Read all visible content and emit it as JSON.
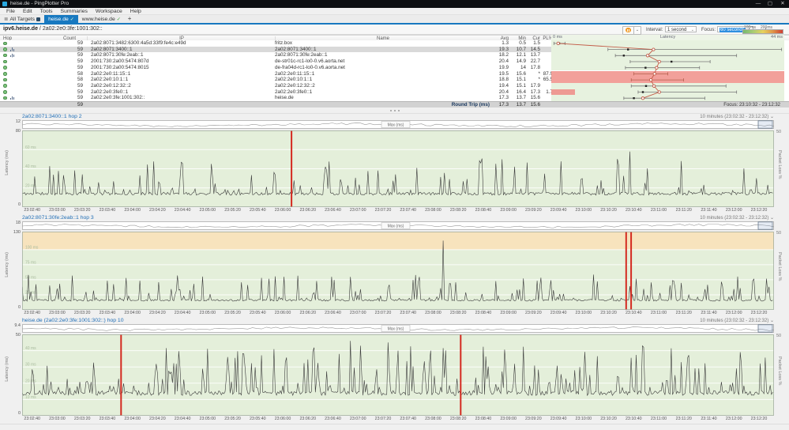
{
  "window": {
    "title": "heise.de - PingPlotter Pro",
    "minimize": "—",
    "maximize": "▢",
    "close": "✕"
  },
  "menu": {
    "items": [
      "File",
      "Edit",
      "Tools",
      "Summaries",
      "Workspace",
      "Help"
    ]
  },
  "icons": {
    "check": "✓",
    "chevron_down": "⌄",
    "summary": "≣",
    "add_tab": "+",
    "pause": "pause-icon"
  },
  "tabs": {
    "all_targets": "All Targets",
    "active_tab": "heise.de",
    "second_tab": "www.heise.de"
  },
  "target_header": {
    "host": "ipv6.heise.de",
    "separator": " / ",
    "address": "2a02:2e0:3fe:1001:302::",
    "interval_label": "Interval:",
    "interval_value": "1 second",
    "focus_label": "Focus:",
    "focus_value": "60 seconds",
    "scale_label_1": "100ms",
    "scale_label_2": "200ms"
  },
  "table": {
    "headers": {
      "hop": "Hop",
      "count": "Count",
      "ip": "IP",
      "name": "Name",
      "avg": "Avg",
      "min": "Min",
      "cur": "Cur",
      "pl": "PL%",
      "latency": "Latency",
      "lat_min": "0 ms",
      "lat_max": "44 ms"
    },
    "rows": [
      {
        "count": "59",
        "ip": "2a02:8071:3482:6300:4a5d:33f9:fe4c:e49d",
        "name": "fritz.box",
        "avg": 1.3,
        "min": 0.5,
        "cur": 1.5,
        "pl": "",
        "max_est": 2.6,
        "has_graph": false,
        "selected": false,
        "loss": ""
      },
      {
        "count": "59",
        "ip": "2a02:8071:3400::1",
        "name": "2a02:8071:3400::1",
        "avg": 19.3,
        "min": 10.7,
        "cur": 14.5,
        "pl": "",
        "max_est": 43.5,
        "has_graph": true,
        "selected": true,
        "loss": ""
      },
      {
        "count": "59",
        "ip": "2a02:8071:30fe:2eab::1",
        "name": "2a02:8071:30fe:2eab::1",
        "avg": 18.2,
        "min": 12.1,
        "cur": 13.7,
        "pl": "",
        "max_est": 35,
        "has_graph": true,
        "selected": false,
        "loss": ""
      },
      {
        "count": "59",
        "ip": "2001:730:2a00:5474:807d",
        "name": "de-str01c-rc1-lo0-0.v6.aorta.net",
        "avg": 20.4,
        "min": 14.9,
        "cur": 22.7,
        "pl": "",
        "max_est": 30,
        "has_graph": false,
        "selected": false,
        "loss": ""
      },
      {
        "count": "59",
        "ip": "2001:730:2a00:5474:8015",
        "name": "de-fra04d-rc1-lo0-0.v6.aorta.net",
        "avg": 19.9,
        "min": 14.0,
        "cur": 17.8,
        "pl": "",
        "max_est": 28,
        "has_graph": false,
        "selected": false,
        "loss": ""
      },
      {
        "count": "58",
        "ip": "2a02:2e0:11:15::1",
        "name": "2a02:2e0:11:15::1",
        "avg": 19.5,
        "min": 15.6,
        "cur": "*",
        "pl": "87.9",
        "max_est": 22,
        "has_graph": false,
        "selected": false,
        "loss": "full"
      },
      {
        "count": "58",
        "ip": "2a02:2e0:10:1::1",
        "name": "2a02:2e0:10:1::1",
        "avg": 18.8,
        "min": 15.1,
        "cur": "*",
        "pl": "65.5",
        "max_est": 25,
        "has_graph": false,
        "selected": false,
        "loss": "full"
      },
      {
        "count": "59",
        "ip": "2a02:2e0:12:32::2",
        "name": "2a02:2e0:12:32::2",
        "avg": 19.4,
        "min": 15.1,
        "cur": 17.9,
        "pl": "",
        "max_est": 33,
        "has_graph": false,
        "selected": false,
        "loss": ""
      },
      {
        "count": "59",
        "ip": "2a02:2e0:3fe0::1",
        "name": "2a02:2e0:3fe0::1",
        "avg": 20.4,
        "min": 16.4,
        "cur": 17.3,
        "pl": "1.7",
        "max_est": 35,
        "has_graph": false,
        "selected": false,
        "loss": "small"
      },
      {
        "count": "59",
        "ip": "2a02:2e0:3fe:1001:302::",
        "name": "heise.de",
        "avg": 17.3,
        "min": 13.7,
        "cur": 15.6,
        "pl": "",
        "max_est": 29,
        "has_graph": true,
        "selected": false,
        "loss": ""
      }
    ],
    "summary": {
      "count": "59",
      "label": "Round Trip (ms)",
      "avg": "17.3",
      "min": "13.7",
      "cur": "15.6",
      "focus": "Focus: 23:10:32 - 23:12:32"
    }
  },
  "colors": {
    "accent_blue": "#1879c0",
    "green_bg": "#e7f2df",
    "plot_green": "#e4efda",
    "loss_pink": "#f2a09a",
    "loss_red": "#d42a20",
    "series_red": "#c25b47",
    "warn_orange": "#f7e3bd",
    "selected_row": "#d9d9d9",
    "spike_line": "#3a3a3a",
    "whisker": "#777777",
    "whisker_loss": "#b5604e"
  },
  "chart_data": [
    {
      "type": "line",
      "title": "2a02:8071:3400::1 hop 2",
      "period_label": "10 minutes (23:02:32 - 23:12:32)",
      "overview_max_label": "12",
      "overview_tag": "Max (ms)",
      "ylabel": "Latency (ms)",
      "y2label": "Packet Loss %",
      "y2_top": "50",
      "ylim": [
        0,
        80
      ],
      "ymax_label": "80",
      "ymin_label": "0",
      "x_range_seconds": 600,
      "baseline_ms": 14,
      "spike_freq": 0.16,
      "spike_max_ms": 34,
      "major_spikes": [
        {
          "t": 485,
          "v": 58
        }
      ],
      "loss_events_t": [
        215
      ],
      "gridlines_ms": [
        20,
        40,
        60
      ],
      "warn_zone_ms": null,
      "seed": 11
    },
    {
      "type": "line",
      "title": "2a02:8071:30fe:2eab::1 hop 3",
      "period_label": "10 minutes (23:02:32 - 23:12:32)",
      "overview_max_label": "18",
      "overview_tag": "Max (ms)",
      "ylabel": "Latency (ms)",
      "y2label": "Packet Loss %",
      "y2_top": "50",
      "ylim": [
        0,
        130
      ],
      "ymax_label": "130",
      "ymin_label": "0",
      "x_range_seconds": 600,
      "baseline_ms": 16,
      "spike_freq": 0.18,
      "spike_max_ms": 40,
      "major_spikes": [
        {
          "t": 336,
          "v": 115
        }
      ],
      "loss_events_t": [
        482,
        486
      ],
      "gridlines_ms": [
        25,
        50,
        75,
        100
      ],
      "warn_zone_ms": [
        100,
        130
      ],
      "seed": 23
    },
    {
      "type": "line",
      "title": "heise.de (2a02:2e0:3fe:1001:302::) hop 10",
      "period_label": "10 minutes (23:02:32 - 23:12:32)",
      "overview_max_label": "9.4",
      "overview_tag": "Max (ms)",
      "ylabel": "Latency (ms)",
      "y2label": "Packet Loss %",
      "y2_top": "50",
      "ylim": [
        0,
        50
      ],
      "ymax_label": "50",
      "ymin_label": "0",
      "x_range_seconds": 600,
      "baseline_ms": 14,
      "spike_freq": 0.3,
      "spike_max_ms": 26,
      "major_spikes": [
        {
          "t": 253,
          "v": 38
        },
        {
          "t": 262,
          "v": 46
        },
        {
          "t": 270,
          "v": 43
        },
        {
          "t": 292,
          "v": 45
        },
        {
          "t": 300,
          "v": 40
        }
      ],
      "loss_events_t": [
        79,
        350
      ],
      "gridlines_ms": [
        10,
        20,
        30,
        40
      ],
      "warn_zone_ms": null,
      "seed": 37
    }
  ],
  "x_ticks_shared": [
    "23:02:40",
    "23:03:00",
    "23:03:20",
    "23:03:40",
    "23:04:00",
    "23:04:20",
    "23:04:40",
    "23:05:00",
    "23:05:20",
    "23:05:40",
    "23:06:00",
    "23:06:20",
    "23:06:40",
    "23:07:00",
    "23:07:20",
    "23:07:40",
    "23:08:00",
    "23:08:20",
    "23:08:40",
    "23:09:00",
    "23:09:20",
    "23:09:40",
    "23:10:00",
    "23:10:20",
    "23:10:40",
    "23:11:00",
    "23:11:20",
    "23:11:40",
    "23:12:00",
    "23:12:20"
  ]
}
